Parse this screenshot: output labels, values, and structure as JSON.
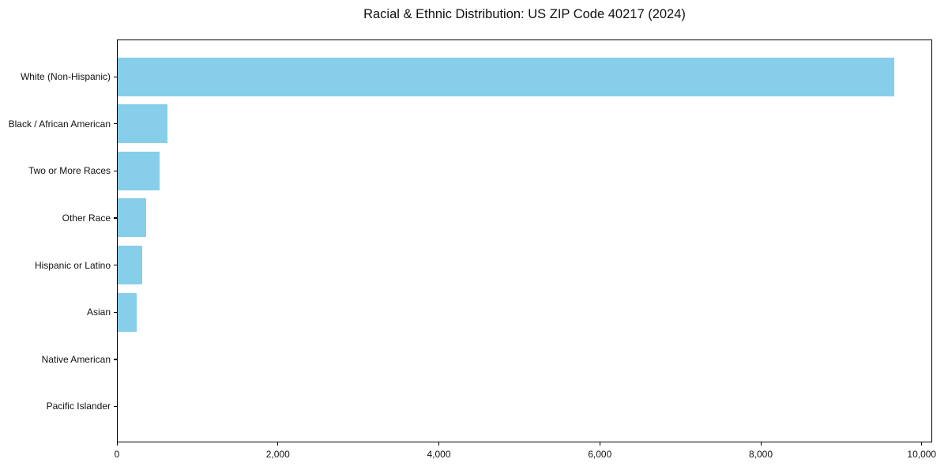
{
  "chart_data": {
    "type": "bar",
    "orientation": "horizontal",
    "title": "Racial & Ethnic Distribution: US ZIP Code 40217 (2024)",
    "categories": [
      "White (Non-Hispanic)",
      "Black / African American",
      "Two or More Races",
      "Other Race",
      "Hispanic or Latino",
      "Asian",
      "Native American",
      "Pacific Islander"
    ],
    "values": [
      9650,
      620,
      520,
      350,
      300,
      240,
      0,
      0
    ],
    "xlabel": "",
    "ylabel": "",
    "xlim": [
      0,
      10130
    ],
    "xticks": [
      0,
      2000,
      4000,
      6000,
      8000,
      10000
    ],
    "xtick_labels": [
      "0",
      "2,000",
      "4,000",
      "6,000",
      "8,000",
      "10,000"
    ],
    "bar_color": "#87CEEB",
    "frame_color": "#000000",
    "background": "#FFFFFF",
    "grid": false,
    "legend": null
  }
}
